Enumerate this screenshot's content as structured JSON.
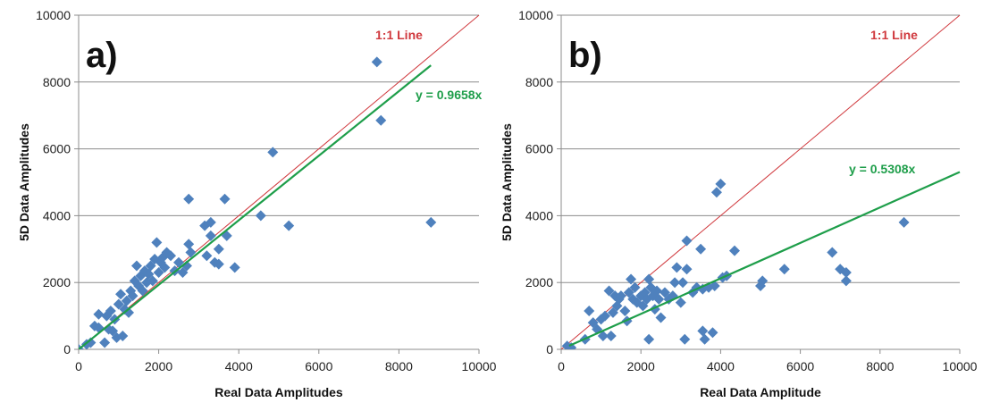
{
  "colors": {
    "points": "#4F81BD",
    "fit_line": "#1E9E4A",
    "one_to_one": "#D0393E",
    "grid": "#8C8C8C",
    "axis": "#8C8C8C"
  },
  "chart_data": [
    {
      "type": "scatter",
      "panel_label": "a)",
      "xlabel": "Real Data Amplitudes",
      "ylabel": "5D Data Amplitudes",
      "xlim": [
        0,
        10000
      ],
      "ylim": [
        0,
        10000
      ],
      "xticks": [
        "0",
        "2000",
        "4000",
        "6000",
        "8000",
        "10000"
      ],
      "yticks": [
        "0",
        "2000",
        "4000",
        "6000",
        "8000",
        "10000"
      ],
      "grid": "horizontal",
      "one_to_one_label": "1:1 Line",
      "fit_label": "y = 0.9658x",
      "fit_slope": 0.9658,
      "fit_x_range": [
        0,
        8800
      ],
      "points": [
        [
          0,
          0
        ],
        [
          200,
          150
        ],
        [
          300,
          200
        ],
        [
          400,
          700
        ],
        [
          500,
          650
        ],
        [
          500,
          1050
        ],
        [
          650,
          200
        ],
        [
          700,
          1000
        ],
        [
          750,
          600
        ],
        [
          800,
          1150
        ],
        [
          850,
          550
        ],
        [
          900,
          900
        ],
        [
          950,
          350
        ],
        [
          1000,
          1350
        ],
        [
          1050,
          1650
        ],
        [
          1100,
          400
        ],
        [
          1150,
          1200
        ],
        [
          1200,
          1450
        ],
        [
          1250,
          1100
        ],
        [
          1300,
          1750
        ],
        [
          1350,
          1600
        ],
        [
          1400,
          2050
        ],
        [
          1450,
          2500
        ],
        [
          1500,
          1900
        ],
        [
          1550,
          2200
        ],
        [
          1600,
          1750
        ],
        [
          1650,
          2350
        ],
        [
          1700,
          2000
        ],
        [
          1750,
          2250
        ],
        [
          1800,
          2500
        ],
        [
          1850,
          2050
        ],
        [
          1900,
          2700
        ],
        [
          1950,
          3200
        ],
        [
          2000,
          2300
        ],
        [
          2050,
          2600
        ],
        [
          2100,
          2750
        ],
        [
          2150,
          2450
        ],
        [
          2200,
          2900
        ],
        [
          2300,
          2800
        ],
        [
          2400,
          2350
        ],
        [
          2500,
          2600
        ],
        [
          2600,
          2300
        ],
        [
          2700,
          2500
        ],
        [
          2750,
          3150
        ],
        [
          2800,
          2900
        ],
        [
          2750,
          4500
        ],
        [
          3150,
          3700
        ],
        [
          3200,
          2800
        ],
        [
          3300,
          3800
        ],
        [
          3300,
          3400
        ],
        [
          3400,
          2600
        ],
        [
          3500,
          3000
        ],
        [
          3500,
          2550
        ],
        [
          3650,
          4500
        ],
        [
          3700,
          3400
        ],
        [
          3900,
          2450
        ],
        [
          4550,
          4000
        ],
        [
          4850,
          5900
        ],
        [
          5250,
          3700
        ],
        [
          7450,
          8600
        ],
        [
          7550,
          6850
        ],
        [
          8800,
          3800
        ]
      ]
    },
    {
      "type": "scatter",
      "panel_label": "b)",
      "xlabel": "Real Data Amplitude",
      "ylabel": "5D Data Amplitudes",
      "xlim": [
        0,
        10000
      ],
      "ylim": [
        0,
        10000
      ],
      "xticks": [
        "0",
        "2000",
        "4000",
        "6000",
        "8000",
        "10000"
      ],
      "yticks": [
        "0",
        "2000",
        "4000",
        "6000",
        "8000",
        "10000"
      ],
      "grid": "horizontal",
      "one_to_one_label": "1:1 Line",
      "fit_label": "y = 0.5308x",
      "fit_slope": 0.5308,
      "fit_x_range": [
        200,
        10000
      ],
      "points": [
        [
          150,
          100
        ],
        [
          250,
          50
        ],
        [
          600,
          300
        ],
        [
          700,
          1150
        ],
        [
          800,
          800
        ],
        [
          900,
          600
        ],
        [
          1000,
          900
        ],
        [
          1050,
          400
        ],
        [
          1100,
          1000
        ],
        [
          1200,
          1750
        ],
        [
          1250,
          400
        ],
        [
          1300,
          1100
        ],
        [
          1350,
          1600
        ],
        [
          1400,
          1300
        ],
        [
          1450,
          1500
        ],
        [
          1500,
          1600
        ],
        [
          1600,
          1150
        ],
        [
          1650,
          850
        ],
        [
          1700,
          1700
        ],
        [
          1750,
          2100
        ],
        [
          1800,
          1500
        ],
        [
          1850,
          1850
        ],
        [
          1900,
          1400
        ],
        [
          2000,
          1600
        ],
        [
          2050,
          1300
        ],
        [
          2100,
          1700
        ],
        [
          2150,
          1500
        ],
        [
          2200,
          2100
        ],
        [
          2200,
          300
        ],
        [
          2250,
          1850
        ],
        [
          2300,
          1600
        ],
        [
          2350,
          1200
        ],
        [
          2400,
          1750
        ],
        [
          2450,
          1500
        ],
        [
          2500,
          950
        ],
        [
          2600,
          1700
        ],
        [
          2700,
          1500
        ],
        [
          2800,
          1600
        ],
        [
          2850,
          2000
        ],
        [
          2900,
          2450
        ],
        [
          3000,
          1400
        ],
        [
          3050,
          2000
        ],
        [
          3100,
          300
        ],
        [
          3150,
          3250
        ],
        [
          3150,
          2400
        ],
        [
          3300,
          1700
        ],
        [
          3400,
          1850
        ],
        [
          3500,
          3000
        ],
        [
          3550,
          1800
        ],
        [
          3550,
          550
        ],
        [
          3600,
          300
        ],
        [
          3700,
          1850
        ],
        [
          3800,
          500
        ],
        [
          3850,
          1900
        ],
        [
          3900,
          4700
        ],
        [
          4000,
          4950
        ],
        [
          4050,
          2150
        ],
        [
          4150,
          2200
        ],
        [
          4350,
          2950
        ],
        [
          5000,
          1900
        ],
        [
          5050,
          2050
        ],
        [
          5600,
          2400
        ],
        [
          6800,
          2900
        ],
        [
          7000,
          2400
        ],
        [
          7150,
          2050
        ],
        [
          7150,
          2300
        ],
        [
          8600,
          3800
        ]
      ]
    }
  ]
}
